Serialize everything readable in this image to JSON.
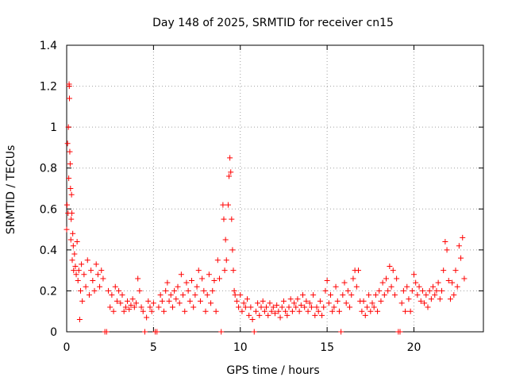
{
  "chart_data": {
    "type": "scatter",
    "title": "Day 148 of 2025, SRMTID for receiver cn15",
    "xlabel": "GPS time / hours",
    "ylabel": "SRMTID / TECUs",
    "xlim": [
      0,
      24
    ],
    "ylim": [
      0,
      1.4
    ],
    "xticks": [
      0,
      5,
      10,
      15,
      20
    ],
    "xtick_labels": [
      "0",
      "5",
      "10",
      "15",
      "20"
    ],
    "yticks": [
      0,
      0.2,
      0.4,
      0.6,
      0.8,
      1.0,
      1.2,
      1.4
    ],
    "ytick_labels": [
      "0",
      "0.2",
      "0.4",
      "0.6",
      "0.8",
      "1",
      "1.2",
      "1.4"
    ],
    "grid": true,
    "marker": "+",
    "color": "#ff0000",
    "series": [
      {
        "name": "SRMTID",
        "points": [
          [
            0.0,
            0.5
          ],
          [
            0.02,
            0.62
          ],
          [
            0.05,
            0.92
          ],
          [
            0.08,
            0.58
          ],
          [
            0.1,
            1.0
          ],
          [
            0.12,
            0.75
          ],
          [
            0.14,
            1.21
          ],
          [
            0.15,
            1.2
          ],
          [
            0.16,
            1.14
          ],
          [
            0.18,
            0.88
          ],
          [
            0.2,
            0.82
          ],
          [
            0.22,
            0.7
          ],
          [
            0.24,
            0.45
          ],
          [
            0.26,
            0.55
          ],
          [
            0.28,
            0.67
          ],
          [
            0.3,
            0.58
          ],
          [
            0.32,
            0.35
          ],
          [
            0.35,
            0.48
          ],
          [
            0.38,
            0.42
          ],
          [
            0.4,
            0.3
          ],
          [
            0.45,
            0.38
          ],
          [
            0.5,
            0.32
          ],
          [
            0.55,
            0.28
          ],
          [
            0.6,
            0.44
          ],
          [
            0.65,
            0.25
          ],
          [
            0.7,
            0.3
          ],
          [
            0.75,
            0.06
          ],
          [
            0.8,
            0.2
          ],
          [
            0.85,
            0.33
          ],
          [
            0.9,
            0.15
          ],
          [
            1.0,
            0.28
          ],
          [
            1.1,
            0.22
          ],
          [
            1.2,
            0.35
          ],
          [
            1.3,
            0.18
          ],
          [
            1.4,
            0.3
          ],
          [
            1.5,
            0.25
          ],
          [
            1.6,
            0.2
          ],
          [
            1.7,
            0.33
          ],
          [
            1.8,
            0.28
          ],
          [
            1.9,
            0.22
          ],
          [
            2.0,
            0.3
          ],
          [
            2.1,
            0.26
          ],
          [
            2.2,
            0.0
          ],
          [
            2.3,
            0.0
          ],
          [
            2.4,
            0.2
          ],
          [
            2.5,
            0.12
          ],
          [
            2.6,
            0.18
          ],
          [
            2.7,
            0.1
          ],
          [
            2.8,
            0.22
          ],
          [
            2.9,
            0.15
          ],
          [
            3.0,
            0.2
          ],
          [
            3.1,
            0.14
          ],
          [
            3.2,
            0.18
          ],
          [
            3.3,
            0.1
          ],
          [
            3.4,
            0.12
          ],
          [
            3.5,
            0.15
          ],
          [
            3.6,
            0.11
          ],
          [
            3.7,
            0.13
          ],
          [
            3.8,
            0.16
          ],
          [
            3.9,
            0.12
          ],
          [
            4.0,
            0.14
          ],
          [
            4.1,
            0.26
          ],
          [
            4.2,
            0.2
          ],
          [
            4.3,
            0.12
          ],
          [
            4.4,
            0.1
          ],
          [
            4.5,
            0.0
          ],
          [
            4.6,
            0.07
          ],
          [
            4.7,
            0.15
          ],
          [
            4.8,
            0.12
          ],
          [
            4.9,
            0.1
          ],
          [
            5.0,
            0.14
          ],
          [
            5.1,
            0.0
          ],
          [
            5.2,
            0.0
          ],
          [
            5.3,
            0.12
          ],
          [
            5.4,
            0.18
          ],
          [
            5.5,
            0.15
          ],
          [
            5.6,
            0.1
          ],
          [
            5.7,
            0.2
          ],
          [
            5.8,
            0.24
          ],
          [
            5.9,
            0.15
          ],
          [
            6.0,
            0.18
          ],
          [
            6.1,
            0.12
          ],
          [
            6.2,
            0.2
          ],
          [
            6.3,
            0.16
          ],
          [
            6.4,
            0.22
          ],
          [
            6.5,
            0.14
          ],
          [
            6.6,
            0.28
          ],
          [
            6.7,
            0.18
          ],
          [
            6.8,
            0.1
          ],
          [
            6.9,
            0.24
          ],
          [
            7.0,
            0.2
          ],
          [
            7.1,
            0.15
          ],
          [
            7.2,
            0.25
          ],
          [
            7.3,
            0.12
          ],
          [
            7.4,
            0.18
          ],
          [
            7.5,
            0.22
          ],
          [
            7.6,
            0.3
          ],
          [
            7.7,
            0.15
          ],
          [
            7.8,
            0.26
          ],
          [
            7.9,
            0.2
          ],
          [
            8.0,
            0.1
          ],
          [
            8.1,
            0.18
          ],
          [
            8.2,
            0.28
          ],
          [
            8.3,
            0.14
          ],
          [
            8.4,
            0.2
          ],
          [
            8.5,
            0.25
          ],
          [
            8.6,
            0.1
          ],
          [
            8.7,
            0.35
          ],
          [
            8.8,
            0.26
          ],
          [
            8.9,
            0.0
          ],
          [
            9.0,
            0.62
          ],
          [
            9.05,
            0.55
          ],
          [
            9.1,
            0.3
          ],
          [
            9.15,
            0.45
          ],
          [
            9.2,
            0.35
          ],
          [
            9.3,
            0.62
          ],
          [
            9.35,
            0.76
          ],
          [
            9.4,
            0.85
          ],
          [
            9.45,
            0.78
          ],
          [
            9.5,
            0.55
          ],
          [
            9.55,
            0.4
          ],
          [
            9.6,
            0.3
          ],
          [
            9.65,
            0.2
          ],
          [
            9.7,
            0.18
          ],
          [
            9.8,
            0.15
          ],
          [
            9.9,
            0.12
          ],
          [
            10.0,
            0.18
          ],
          [
            10.1,
            0.1
          ],
          [
            10.2,
            0.14
          ],
          [
            10.3,
            0.12
          ],
          [
            10.4,
            0.16
          ],
          [
            10.5,
            0.08
          ],
          [
            10.6,
            0.12
          ],
          [
            10.7,
            0.06
          ],
          [
            10.8,
            0.0
          ],
          [
            10.9,
            0.1
          ],
          [
            11.0,
            0.14
          ],
          [
            11.1,
            0.08
          ],
          [
            11.2,
            0.12
          ],
          [
            11.3,
            0.15
          ],
          [
            11.4,
            0.1
          ],
          [
            11.5,
            0.12
          ],
          [
            11.6,
            0.08
          ],
          [
            11.7,
            0.14
          ],
          [
            11.8,
            0.1
          ],
          [
            11.9,
            0.12
          ],
          [
            12.0,
            0.09
          ],
          [
            12.1,
            0.13
          ],
          [
            12.2,
            0.1
          ],
          [
            12.3,
            0.07
          ],
          [
            12.4,
            0.12
          ],
          [
            12.5,
            0.15
          ],
          [
            12.6,
            0.1
          ],
          [
            12.7,
            0.08
          ],
          [
            12.8,
            0.12
          ],
          [
            12.9,
            0.16
          ],
          [
            13.0,
            0.1
          ],
          [
            13.1,
            0.14
          ],
          [
            13.2,
            0.12
          ],
          [
            13.3,
            0.16
          ],
          [
            13.4,
            0.1
          ],
          [
            13.5,
            0.13
          ],
          [
            13.6,
            0.18
          ],
          [
            13.7,
            0.12
          ],
          [
            13.8,
            0.15
          ],
          [
            13.9,
            0.1
          ],
          [
            14.0,
            0.14
          ],
          [
            14.1,
            0.12
          ],
          [
            14.2,
            0.18
          ],
          [
            14.3,
            0.08
          ],
          [
            14.4,
            0.12
          ],
          [
            14.5,
            0.1
          ],
          [
            14.6,
            0.15
          ],
          [
            14.7,
            0.08
          ],
          [
            14.8,
            0.12
          ],
          [
            14.9,
            0.2
          ],
          [
            15.0,
            0.25
          ],
          [
            15.1,
            0.14
          ],
          [
            15.2,
            0.18
          ],
          [
            15.3,
            0.1
          ],
          [
            15.4,
            0.12
          ],
          [
            15.5,
            0.22
          ],
          [
            15.6,
            0.15
          ],
          [
            15.7,
            0.1
          ],
          [
            15.8,
            0.0
          ],
          [
            15.9,
            0.18
          ],
          [
            16.0,
            0.24
          ],
          [
            16.1,
            0.14
          ],
          [
            16.2,
            0.2
          ],
          [
            16.3,
            0.12
          ],
          [
            16.4,
            0.18
          ],
          [
            16.5,
            0.26
          ],
          [
            16.6,
            0.3
          ],
          [
            16.7,
            0.22
          ],
          [
            16.8,
            0.3
          ],
          [
            16.9,
            0.15
          ],
          [
            17.0,
            0.1
          ],
          [
            17.1,
            0.15
          ],
          [
            17.2,
            0.08
          ],
          [
            17.3,
            0.12
          ],
          [
            17.4,
            0.18
          ],
          [
            17.5,
            0.1
          ],
          [
            17.6,
            0.14
          ],
          [
            17.7,
            0.12
          ],
          [
            17.8,
            0.18
          ],
          [
            17.9,
            0.1
          ],
          [
            18.0,
            0.2
          ],
          [
            18.1,
            0.15
          ],
          [
            18.2,
            0.24
          ],
          [
            18.3,
            0.18
          ],
          [
            18.4,
            0.26
          ],
          [
            18.5,
            0.2
          ],
          [
            18.6,
            0.32
          ],
          [
            18.7,
            0.22
          ],
          [
            18.8,
            0.3
          ],
          [
            18.9,
            0.18
          ],
          [
            19.0,
            0.26
          ],
          [
            19.1,
            0.0
          ],
          [
            19.2,
            0.0
          ],
          [
            19.3,
            0.14
          ],
          [
            19.4,
            0.2
          ],
          [
            19.5,
            0.1
          ],
          [
            19.6,
            0.22
          ],
          [
            19.7,
            0.16
          ],
          [
            19.8,
            0.1
          ],
          [
            19.9,
            0.2
          ],
          [
            20.0,
            0.28
          ],
          [
            20.1,
            0.24
          ],
          [
            20.2,
            0.18
          ],
          [
            20.3,
            0.22
          ],
          [
            20.4,
            0.15
          ],
          [
            20.5,
            0.2
          ],
          [
            20.6,
            0.14
          ],
          [
            20.7,
            0.18
          ],
          [
            20.8,
            0.12
          ],
          [
            20.9,
            0.2
          ],
          [
            21.0,
            0.16
          ],
          [
            21.1,
            0.22
          ],
          [
            21.2,
            0.18
          ],
          [
            21.3,
            0.2
          ],
          [
            21.4,
            0.24
          ],
          [
            21.5,
            0.16
          ],
          [
            21.6,
            0.2
          ],
          [
            21.7,
            0.3
          ],
          [
            21.8,
            0.44
          ],
          [
            21.9,
            0.4
          ],
          [
            22.0,
            0.25
          ],
          [
            22.1,
            0.16
          ],
          [
            22.2,
            0.24
          ],
          [
            22.3,
            0.18
          ],
          [
            22.4,
            0.3
          ],
          [
            22.5,
            0.22
          ],
          [
            22.6,
            0.42
          ],
          [
            22.7,
            0.36
          ],
          [
            22.8,
            0.46
          ],
          [
            22.9,
            0.26
          ]
        ]
      }
    ]
  }
}
